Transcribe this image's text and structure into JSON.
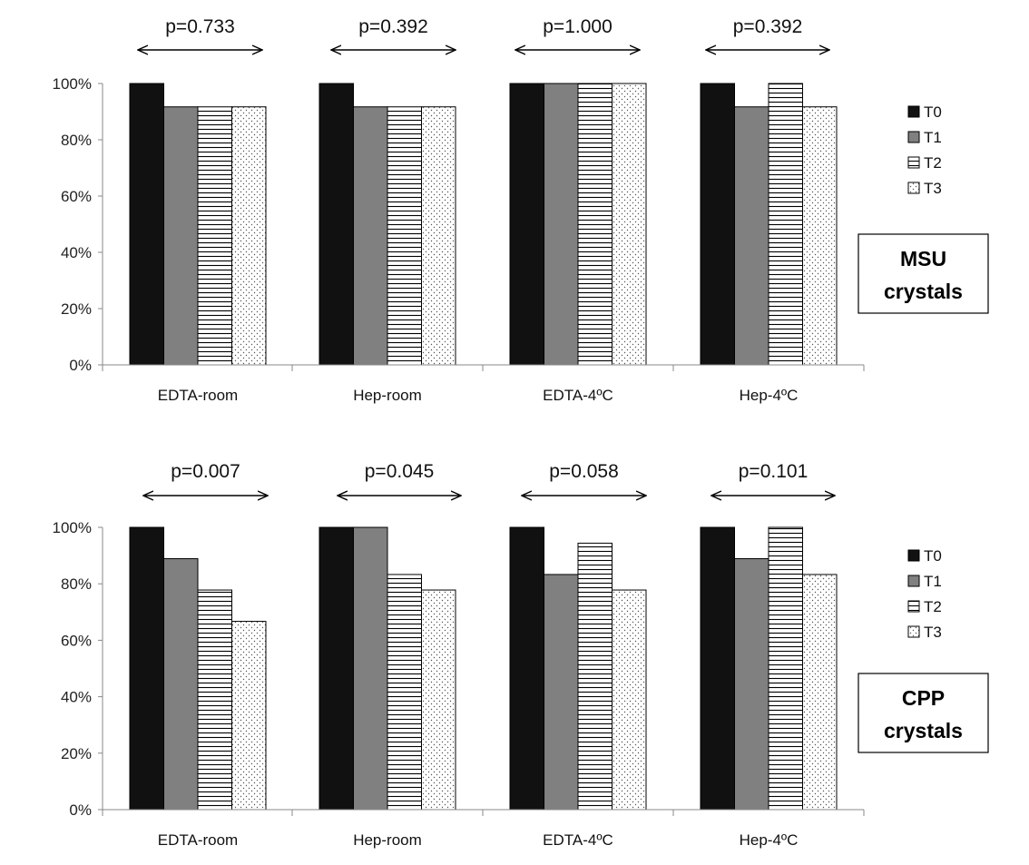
{
  "fills": {
    "T0": "#111111",
    "T1": "#808080",
    "T2": "pattern-horizontal-lines",
    "T3": "pattern-dots"
  },
  "chart_data": [
    {
      "type": "bar",
      "categories": [
        "EDTA-room",
        "Hep-room",
        "EDTA-4ºC",
        "Hep-4ºC"
      ],
      "series": [
        {
          "name": "T0",
          "values": [
            100,
            100,
            100,
            100
          ]
        },
        {
          "name": "T1",
          "values": [
            91.7,
            91.7,
            100,
            91.7
          ]
        },
        {
          "name": "T2",
          "values": [
            91.7,
            91.7,
            100,
            100
          ]
        },
        {
          "name": "T3",
          "values": [
            91.7,
            91.7,
            100,
            91.7
          ]
        }
      ],
      "p_values": [
        "p=0.733",
        "p=0.392",
        "p=1.000",
        "p=0.392"
      ],
      "box_label": [
        "MSU",
        "crystals"
      ],
      "ylim": [
        0,
        100
      ],
      "yticks": [
        "0%",
        "20%",
        "40%",
        "60%",
        "80%",
        "100%"
      ],
      "legend": [
        "T0",
        "T1",
        "T2",
        "T3"
      ],
      "legend_position": "right",
      "grid": false
    },
    {
      "type": "bar",
      "categories": [
        "EDTA-room",
        "Hep-room",
        "EDTA-4ºC",
        "Hep-4ºC"
      ],
      "series": [
        {
          "name": "T0",
          "values": [
            100,
            100,
            100,
            100
          ]
        },
        {
          "name": "T1",
          "values": [
            88.9,
            100,
            83.3,
            88.9
          ]
        },
        {
          "name": "T2",
          "values": [
            77.8,
            83.3,
            94.4,
            100
          ]
        },
        {
          "name": "T3",
          "values": [
            66.7,
            77.8,
            77.8,
            83.3
          ]
        }
      ],
      "p_values": [
        "p=0.007",
        "p=0.045",
        "p=0.058",
        "p=0.101"
      ],
      "box_label": [
        "CPP",
        "crystals"
      ],
      "ylim": [
        0,
        100
      ],
      "yticks": [
        "0%",
        "20%",
        "40%",
        "60%",
        "80%",
        "100%"
      ],
      "legend": [
        "T0",
        "T1",
        "T2",
        "T3"
      ],
      "legend_position": "right",
      "grid": false
    }
  ]
}
